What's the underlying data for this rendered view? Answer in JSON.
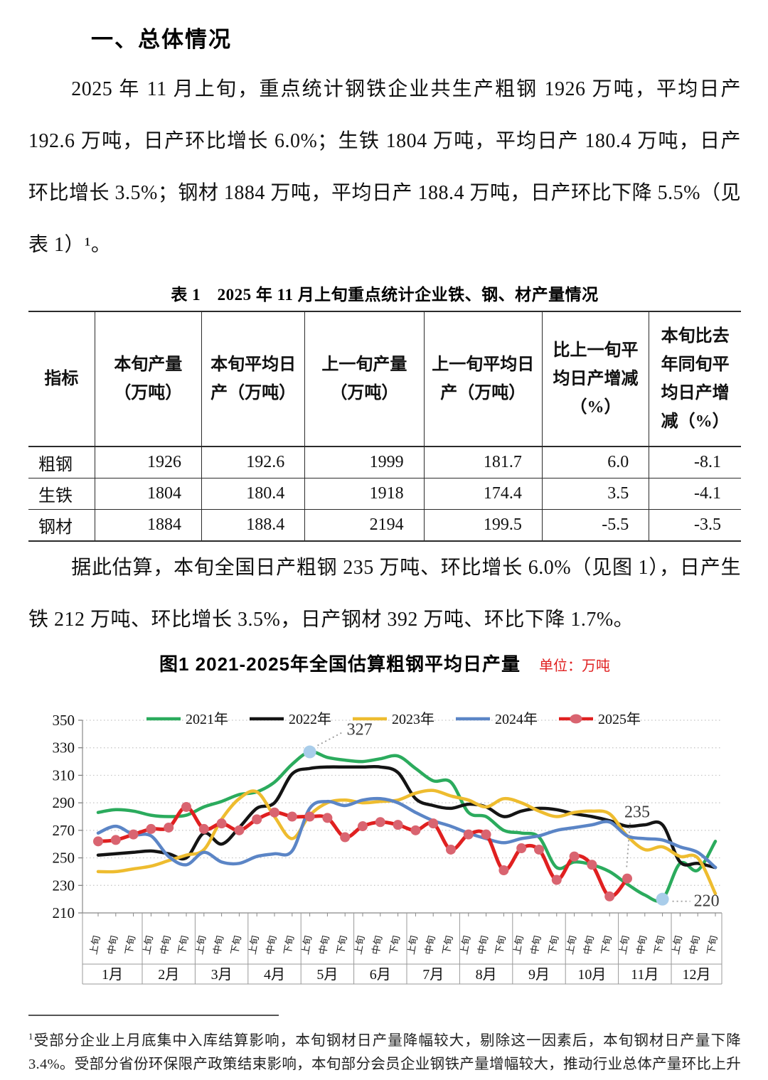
{
  "heading": "一、总体情况",
  "paragraphs": {
    "p1": "2025 年 11 月上旬，重点统计钢铁企业共生产粗钢 1926 万吨，平均日产 192.6 万吨，日产环比增长 6.0%；生铁 1804 万吨，平均日产 180.4 万吨，日产环比增长 3.5%；钢材 1884 万吨，平均日产 188.4 万吨，日产环比下降 5.5%（见表 1）¹。",
    "p2": "据此估算，本旬全国日产粗钢 235 万吨、环比增长 6.0%（见图 1），日产生铁 212 万吨、环比增长 3.5%，日产钢材 392 万吨、环比下降 1.7%。"
  },
  "table": {
    "title": "表 1　2025 年 11 月上旬重点统计企业铁、钢、材产量情况",
    "columns": [
      "指标",
      "本旬产量（万吨）",
      "本旬平均日产（万吨）",
      "上一旬产量（万吨）",
      "上一旬平均日产（万吨）",
      "比上一旬平均日产增减（%）",
      "本旬比去年同旬平均日产增减（%）"
    ],
    "rows": [
      {
        "label": "粗钢",
        "values": [
          "1926",
          "192.6",
          "1999",
          "181.7",
          "6.0",
          "-8.1"
        ]
      },
      {
        "label": "生铁",
        "values": [
          "1804",
          "180.4",
          "1918",
          "174.4",
          "3.5",
          "-4.1"
        ]
      },
      {
        "label": "钢材",
        "values": [
          "1884",
          "188.4",
          "2194",
          "199.5",
          "-5.5",
          "-3.5"
        ]
      }
    ]
  },
  "chart": {
    "title": "图1  2021-2025年全国估算粗钢平均日产量",
    "unit_label": "单位：万吨"
  },
  "chart_data": {
    "type": "line",
    "title": "图1 2021-2025年全国估算粗钢平均日产量",
    "unit": "万吨",
    "ylim": [
      210,
      350
    ],
    "ytick_step": 20,
    "grid": true,
    "legend_position": "top",
    "months": [
      "1月",
      "2月",
      "3月",
      "4月",
      "5月",
      "6月",
      "7月",
      "8月",
      "9月",
      "10月",
      "11月",
      "12月"
    ],
    "period_labels": [
      "上旬",
      "中旬",
      "下旬"
    ],
    "categories": [
      "1月上旬",
      "1月中旬",
      "1月下旬",
      "2月上旬",
      "2月中旬",
      "2月下旬",
      "3月上旬",
      "3月中旬",
      "3月下旬",
      "4月上旬",
      "4月中旬",
      "4月下旬",
      "5月上旬",
      "5月中旬",
      "5月下旬",
      "6月上旬",
      "6月中旬",
      "6月下旬",
      "7月上旬",
      "7月中旬",
      "7月下旬",
      "8月上旬",
      "8月中旬",
      "8月下旬",
      "9月上旬",
      "9月中旬",
      "9月下旬",
      "10月上旬",
      "10月中旬",
      "10月下旬",
      "11月上旬",
      "11月中旬",
      "11月下旬",
      "12月上旬",
      "12月中旬",
      "12月下旬"
    ],
    "series": [
      {
        "name": "2021年",
        "color": "#2bab5d",
        "values": [
          283,
          285,
          284,
          281,
          280,
          281,
          287,
          291,
          296,
          298,
          305,
          318,
          327,
          323,
          321,
          320,
          322,
          324,
          315,
          306,
          305,
          283,
          280,
          270,
          268,
          265,
          243,
          247,
          245,
          240,
          231,
          223,
          220,
          246,
          241,
          262
        ]
      },
      {
        "name": "2022年",
        "color": "#141414",
        "values": [
          252,
          253,
          254,
          255,
          253,
          250,
          268,
          260,
          272,
          286,
          290,
          311,
          315,
          316,
          316,
          316,
          316,
          312,
          293,
          288,
          286,
          289,
          287,
          280,
          284,
          286,
          285,
          282,
          280,
          277,
          273,
          274,
          274,
          247,
          246,
          243
        ]
      },
      {
        "name": "2023年",
        "color": "#eebc2f",
        "values": [
          240,
          240,
          242,
          244,
          248,
          252,
          256,
          278,
          293,
          298,
          280,
          264,
          281,
          290,
          292,
          290,
          291,
          292,
          297,
          299,
          295,
          292,
          287,
          293,
          290,
          284,
          280,
          283,
          284,
          282,
          266,
          256,
          258,
          251,
          250,
          224
        ]
      },
      {
        "name": "2024年",
        "color": "#5b85c6",
        "values": [
          268,
          273,
          267,
          266,
          251,
          245,
          254,
          247,
          246,
          251,
          253,
          255,
          286,
          291,
          288,
          292,
          293,
          290,
          283,
          277,
          273,
          268,
          264,
          261,
          264,
          266,
          270,
          272,
          274,
          276,
          266,
          264,
          263,
          258,
          254,
          243
        ]
      },
      {
        "name": "2025年",
        "color": "#e02020",
        "marker": true,
        "marker_color": "#d96470",
        "values": [
          262,
          263,
          267,
          271,
          272,
          287,
          271,
          275,
          270,
          278,
          283,
          280,
          280,
          279,
          265,
          273,
          276,
          274,
          270,
          275,
          256,
          267,
          267,
          241,
          257,
          256,
          234,
          251,
          245,
          222,
          235
        ]
      }
    ],
    "annotations": [
      {
        "text": "327",
        "series": "2021年",
        "index": 12,
        "value": 327,
        "dot": true,
        "placement": "above-right"
      },
      {
        "text": "235",
        "series": "2025年",
        "index": 30,
        "value": 235,
        "dot": false,
        "placement": "above"
      },
      {
        "text": "220",
        "series": "2021年",
        "index": 32,
        "value": 220,
        "dot": true,
        "placement": "right"
      }
    ],
    "highlight_dot_color": "#a9cdea"
  },
  "footnote": {
    "marker": "1",
    "text": "受部分企业上月底集中入库结算影响，本旬钢材日产量降幅较大，剔除这一因素后，本旬钢材日产量下降 3.4%。受部分省份环保限产政策结束影响，本旬部分会员企业钢铁产量增幅较大，推动行业总体产量环比上升明显。"
  }
}
